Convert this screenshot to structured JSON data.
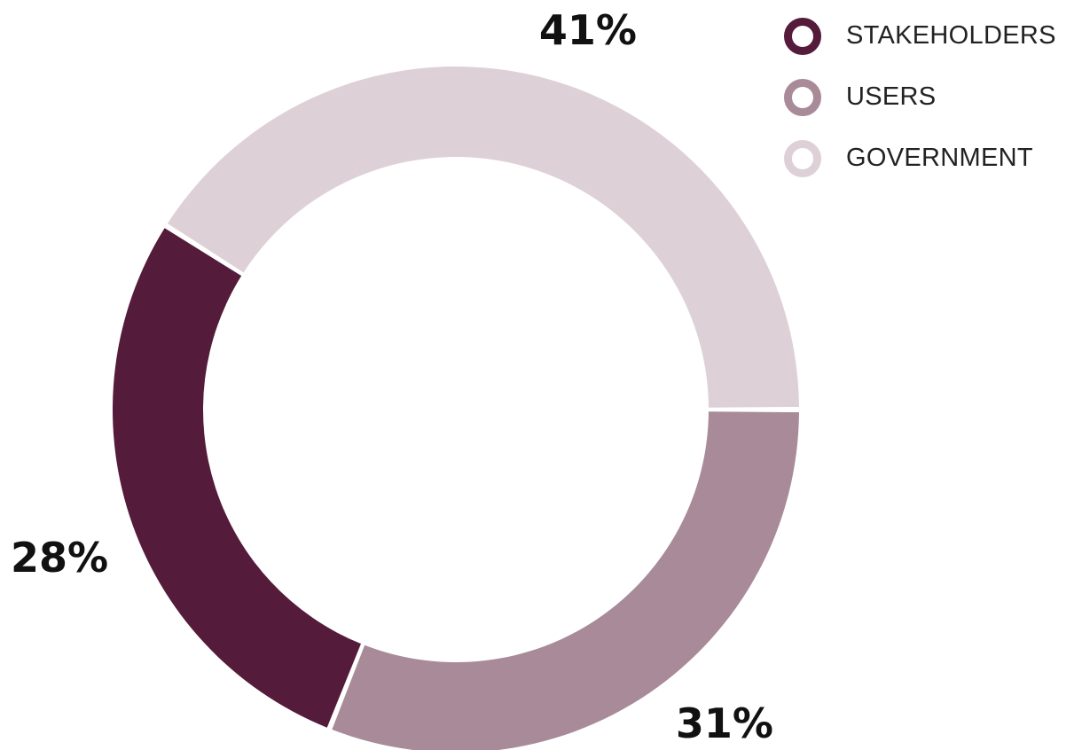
{
  "chart_data": {
    "type": "pie",
    "donut": true,
    "title": "",
    "series": [
      {
        "name": "STAKEHOLDERS",
        "value": 28,
        "label": "28%",
        "color": "#541b3a"
      },
      {
        "name": "USERS",
        "value": 31,
        "label": "31%",
        "color": "#a88a98"
      },
      {
        "name": "GOVERNMENT",
        "value": 41,
        "label": "41%",
        "color": "#ddd1d7"
      }
    ],
    "legend_position": "top-right"
  }
}
